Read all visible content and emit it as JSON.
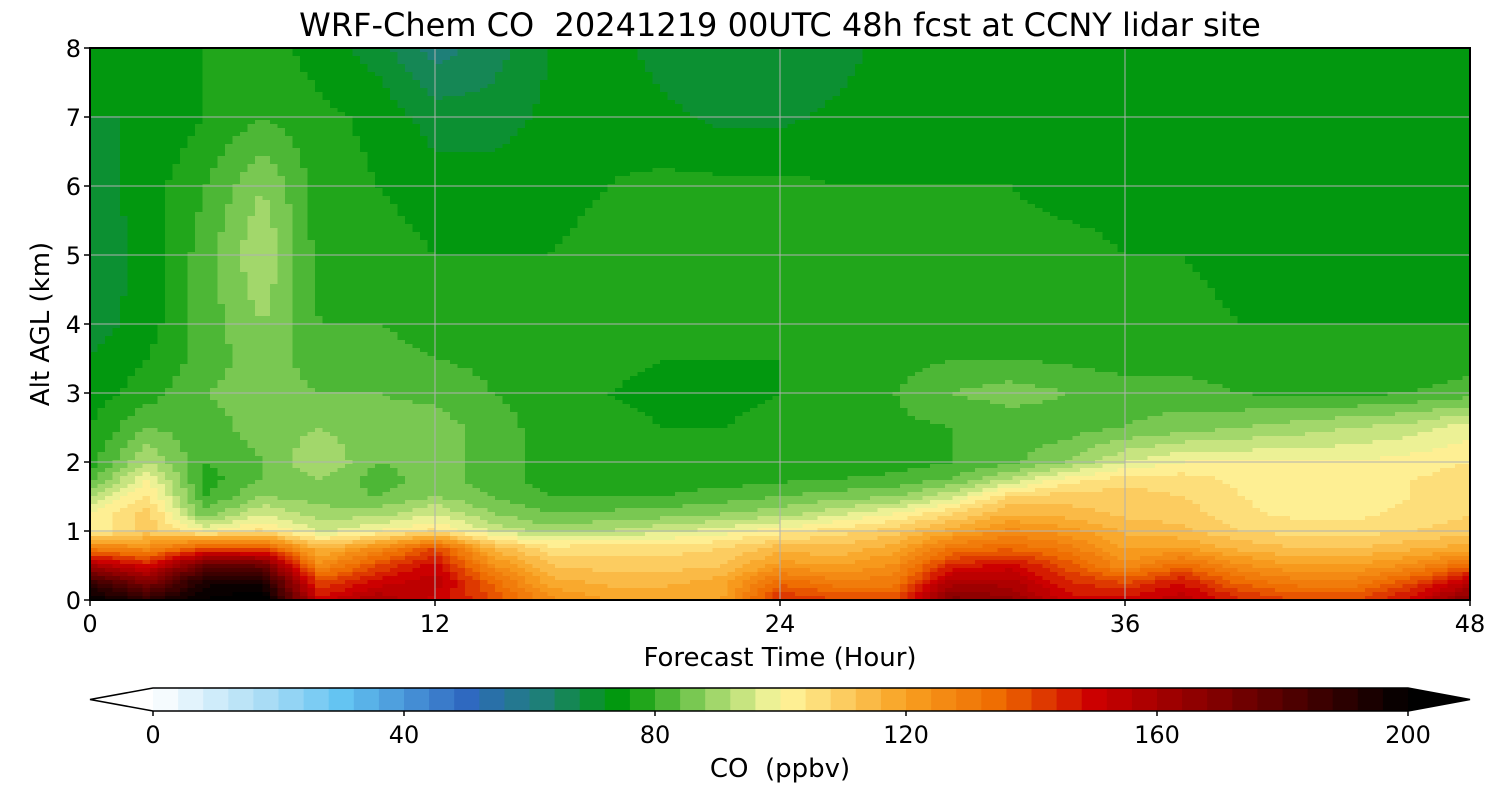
{
  "chart_data": {
    "type": "heatmap",
    "title": "WRF-Chem CO  20241219 00UTC 48h fcst at CCNY lidar site",
    "xlabel": "Forecast Time (Hour)",
    "ylabel": "Alt AGL (km)",
    "xlim": [
      0,
      48
    ],
    "ylim": [
      0,
      8
    ],
    "xticks": [
      0,
      12,
      24,
      36,
      48
    ],
    "yticks": [
      0,
      1,
      2,
      3,
      4,
      5,
      6,
      7,
      8
    ],
    "grid": true,
    "colorbar": {
      "label": "CO  (ppbv)",
      "orientation": "horizontal",
      "placement": "bottom",
      "range": [
        0,
        200
      ],
      "ticks": [
        0,
        40,
        80,
        120,
        160,
        200
      ],
      "extend": "both",
      "stops": [
        {
          "v": 0,
          "c": "#ffffff"
        },
        {
          "v": 20,
          "c": "#9fd8f4"
        },
        {
          "v": 30,
          "c": "#64c4f2"
        },
        {
          "v": 50,
          "c": "#2f69c0"
        },
        {
          "v": 62,
          "c": "#1e7f78"
        },
        {
          "v": 75,
          "c": "#009a06"
        },
        {
          "v": 88,
          "c": "#8fd060"
        },
        {
          "v": 100,
          "c": "#fff8a0"
        },
        {
          "v": 120,
          "c": "#f8a020"
        },
        {
          "v": 135,
          "c": "#ee6a00"
        },
        {
          "v": 150,
          "c": "#cc0000"
        },
        {
          "v": 170,
          "c": "#800000"
        },
        {
          "v": 200,
          "c": "#000000"
        }
      ]
    },
    "x_hours": [
      0,
      2,
      4,
      6,
      8,
      10,
      12,
      14,
      16,
      18,
      20,
      22,
      24,
      26,
      28,
      30,
      32,
      34,
      36,
      38,
      40,
      42,
      44,
      46,
      48
    ],
    "z_km": [
      0,
      0.25,
      0.5,
      0.75,
      1,
      1.25,
      1.5,
      1.75,
      2,
      2.5,
      3,
      3.5,
      4,
      5,
      6,
      7,
      8
    ],
    "co_ppbv": [
      [
        200,
        190,
        200,
        205,
        150,
        160,
        150,
        140,
        125,
        120,
        120,
        120,
        145,
        140,
        140,
        170,
        165,
        150,
        150,
        155,
        145,
        140,
        140,
        150,
        170
      ],
      [
        188,
        170,
        195,
        195,
        140,
        150,
        155,
        135,
        118,
        115,
        115,
        118,
        135,
        130,
        130,
        160,
        158,
        145,
        140,
        148,
        135,
        130,
        130,
        140,
        155
      ],
      [
        160,
        148,
        178,
        175,
        125,
        140,
        150,
        125,
        112,
        110,
        110,
        112,
        122,
        120,
        125,
        145,
        150,
        138,
        125,
        135,
        125,
        120,
        120,
        125,
        135
      ],
      [
        130,
        125,
        140,
        140,
        115,
        125,
        140,
        115,
        106,
        106,
        106,
        108,
        114,
        113,
        118,
        132,
        135,
        130,
        120,
        120,
        115,
        112,
        112,
        115,
        118
      ],
      [
        100,
        110,
        100,
        105,
        95,
        100,
        105,
        95,
        90,
        92,
        95,
        98,
        102,
        106,
        110,
        118,
        125,
        122,
        115,
        113,
        108,
        106,
        106,
        108,
        110
      ],
      [
        100,
        110,
        85,
        96,
        90,
        90,
        96,
        88,
        84,
        85,
        86,
        88,
        90,
        95,
        100,
        108,
        116,
        114,
        111,
        110,
        105,
        103,
        103,
        105,
        108
      ],
      [
        92,
        105,
        80,
        88,
        86,
        84,
        88,
        84,
        80,
        80,
        80,
        82,
        84,
        86,
        88,
        95,
        108,
        110,
        110,
        108,
        104,
        102,
        102,
        104,
        106
      ],
      [
        82,
        100,
        78,
        84,
        88,
        82,
        86,
        82,
        78,
        78,
        78,
        78,
        79,
        80,
        81,
        84,
        92,
        102,
        106,
        106,
        103,
        102,
        102,
        104,
        106
      ],
      [
        78,
        92,
        80,
        84,
        92,
        84,
        86,
        82,
        78,
        77,
        76,
        76,
        77,
        78,
        78,
        80,
        83,
        88,
        96,
        100,
        100,
        100,
        100,
        102,
        104
      ],
      [
        76,
        84,
        82,
        86,
        88,
        85,
        86,
        82,
        78,
        77,
        76,
        76,
        77,
        78,
        79,
        80,
        81,
        82,
        84,
        86,
        88,
        90,
        92,
        94,
        98
      ],
      [
        74,
        78,
        84,
        86,
        84,
        84,
        83,
        80,
        78,
        76,
        75,
        75,
        76,
        77,
        80,
        84,
        86,
        84,
        82,
        82,
        80,
        79,
        79,
        80,
        82
      ],
      [
        72,
        76,
        82,
        86,
        82,
        82,
        80,
        79,
        78,
        77,
        76,
        76,
        76,
        77,
        78,
        80,
        80,
        79,
        78,
        78,
        77,
        76,
        76,
        77,
        78
      ],
      [
        70,
        74,
        82,
        88,
        80,
        80,
        78,
        78,
        78,
        78,
        77,
        77,
        77,
        78,
        78,
        78,
        78,
        78,
        77,
        77,
        76,
        76,
        76,
        76,
        76
      ],
      [
        68,
        74,
        82,
        92,
        78,
        78,
        76,
        76,
        76,
        77,
        78,
        78,
        78,
        78,
        78,
        77,
        77,
        77,
        76,
        76,
        75,
        75,
        75,
        75,
        75
      ],
      [
        70,
        74,
        80,
        88,
        78,
        76,
        74,
        74,
        75,
        76,
        77,
        77,
        77,
        76,
        76,
        76,
        76,
        75,
        75,
        75,
        75,
        75,
        75,
        75,
        75
      ],
      [
        72,
        72,
        76,
        80,
        77,
        75,
        70,
        70,
        73,
        75,
        73,
        71,
        71,
        73,
        75,
        75,
        75,
        75,
        75,
        75,
        75,
        75,
        75,
        75,
        75
      ],
      [
        72,
        72,
        76,
        78,
        74,
        70,
        62,
        66,
        72,
        74,
        70,
        68,
        68,
        70,
        74,
        75,
        75,
        75,
        75,
        75,
        75,
        75,
        75,
        75,
        75
      ]
    ]
  }
}
